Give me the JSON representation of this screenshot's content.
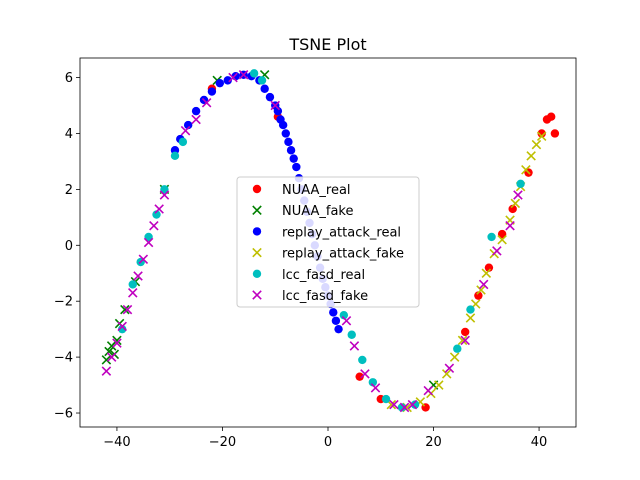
{
  "chart_data": {
    "type": "scatter",
    "title": "TSNE Plot",
    "xlabel": "",
    "ylabel": "",
    "xlim": [
      -47,
      47
    ],
    "ylim": [
      -6.5,
      6.7
    ],
    "xticks": [
      -40,
      -20,
      0,
      20,
      40
    ],
    "xtick_labels": [
      "−40",
      "−20",
      "0",
      "20",
      "40"
    ],
    "yticks": [
      -6,
      -4,
      -2,
      0,
      2,
      4,
      6
    ],
    "ytick_labels": [
      "−6",
      "−4",
      "−2",
      "0",
      "2",
      "4",
      "6"
    ],
    "grid": false,
    "legend_position": "center",
    "series": [
      {
        "name": "NUAA_real",
        "color": "#ff0000",
        "marker": "circle",
        "x": [
          -22.0,
          -9.5,
          6.0,
          10.0,
          18.5,
          26.0,
          28.5,
          30.5,
          33.0,
          35.0,
          38.0,
          40.5,
          41.5,
          42.3,
          43.0
        ],
        "y": [
          5.6,
          4.6,
          -4.7,
          -5.5,
          -5.8,
          -3.1,
          -1.8,
          -0.8,
          0.4,
          1.3,
          2.6,
          4.0,
          4.5,
          4.6,
          4.0
        ]
      },
      {
        "name": "NUAA_fake",
        "color": "#008000",
        "marker": "x",
        "x": [
          -42.0,
          -41.5,
          -41.0,
          -40.5,
          -40.0,
          -39.5,
          -38.5,
          -36.5,
          -31.0,
          -21.0,
          -12.0,
          20.0
        ],
        "y": [
          -4.1,
          -3.8,
          -3.6,
          -3.9,
          -3.4,
          -2.8,
          -2.3,
          -1.3,
          2.0,
          5.9,
          6.1,
          -5.0
        ]
      },
      {
        "name": "replay_attack_real",
        "color": "#0000ff",
        "marker": "circle",
        "x": [
          -29.0,
          -28.0,
          -26.5,
          -25.0,
          -23.5,
          -22.0,
          -20.5,
          -19.0,
          -17.5,
          -16.0,
          -14.5,
          -13.0,
          -12.0,
          -11.0,
          -10.0,
          -9.5,
          -9.0,
          -8.5,
          -8.0,
          -7.5,
          -7.0,
          -6.5,
          -6.0,
          -5.5,
          -5.0,
          -4.5,
          -4.0,
          -3.5,
          -3.0,
          -2.5,
          -2.0,
          -1.5,
          -1.0,
          -0.5,
          0.0,
          0.5,
          1.0,
          1.5,
          2.0
        ],
        "y": [
          3.4,
          3.8,
          4.3,
          4.8,
          5.2,
          5.5,
          5.8,
          5.9,
          6.05,
          6.1,
          6.05,
          5.9,
          5.6,
          5.3,
          5.0,
          4.8,
          4.5,
          4.3,
          4.0,
          3.7,
          3.4,
          3.1,
          2.8,
          2.4,
          2.0,
          1.6,
          1.2,
          0.8,
          0.4,
          0.0,
          -0.4,
          -0.8,
          -1.2,
          -1.5,
          -1.8,
          -2.1,
          -2.4,
          -2.7,
          -3.0
        ]
      },
      {
        "name": "replay_attack_fake",
        "color": "#bfbf00",
        "marker": "x",
        "x": [
          12.0,
          15.0,
          17.5,
          19.5,
          21.0,
          22.5,
          24.0,
          25.5,
          27.0,
          28.0,
          29.0,
          30.0,
          31.5,
          33.0,
          34.5,
          35.5,
          36.5,
          37.5,
          38.5,
          39.5,
          40.5
        ],
        "y": [
          -5.7,
          -5.8,
          -5.6,
          -5.3,
          -5.0,
          -4.6,
          -4.0,
          -3.4,
          -2.6,
          -2.1,
          -1.6,
          -1.0,
          -0.3,
          0.2,
          0.9,
          1.5,
          2.1,
          2.7,
          3.2,
          3.6,
          3.9
        ]
      },
      {
        "name": "lcc_fasd_real",
        "color": "#00bfbf",
        "marker": "circle",
        "x": [
          -39.0,
          -37.0,
          -35.5,
          -34.0,
          -32.5,
          -31.0,
          -29.0,
          -27.5,
          -14.0,
          -12.5,
          3.0,
          4.5,
          6.5,
          8.5,
          11.0,
          14.0,
          16.5,
          24.5,
          27.0,
          31.0,
          36.5
        ],
        "y": [
          -3.0,
          -1.4,
          -0.6,
          0.3,
          1.1,
          2.0,
          3.2,
          3.7,
          6.15,
          5.9,
          -2.5,
          -3.2,
          -4.1,
          -4.9,
          -5.5,
          -5.8,
          -5.7,
          -3.7,
          -2.3,
          0.3,
          2.2
        ]
      },
      {
        "name": "lcc_fasd_fake",
        "color": "#bf00bf",
        "marker": "x",
        "x": [
          -42.0,
          -41.0,
          -40.0,
          -39.0,
          -38.0,
          -37.0,
          -36.0,
          -35.0,
          -34.0,
          -33.0,
          -32.0,
          -31.0,
          -27.0,
          -25.0,
          -23.0,
          -18.0,
          -16.0,
          -10.0,
          3.5,
          5.0,
          7.0,
          9.0,
          12.5,
          14.5,
          16.0,
          19.0,
          23.0,
          26.0,
          29.5,
          32.0,
          34.5,
          36.0
        ],
        "y": [
          -4.5,
          -4.0,
          -3.5,
          -2.9,
          -2.3,
          -1.7,
          -1.1,
          -0.5,
          0.1,
          0.7,
          1.3,
          1.8,
          4.1,
          4.5,
          5.1,
          6.0,
          6.1,
          5.0,
          -2.7,
          -3.6,
          -4.6,
          -5.1,
          -5.7,
          -5.8,
          -5.7,
          -5.2,
          -4.4,
          -3.4,
          -1.4,
          -0.2,
          0.7,
          1.8
        ]
      }
    ]
  }
}
